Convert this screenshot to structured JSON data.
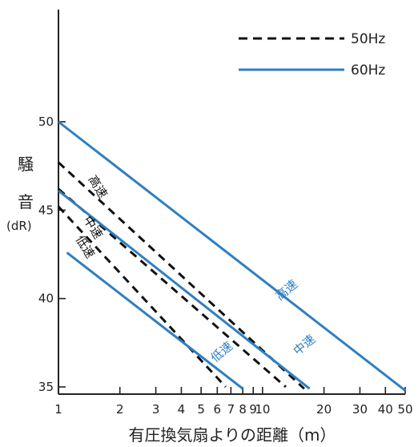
{
  "chart_data": {
    "type": "line",
    "xscale": "log",
    "xlim": [
      1,
      50
    ],
    "ylim": [
      35,
      50
    ],
    "xlabel": "有圧換気扇よりの距離（m）",
    "ylabel_chars": [
      "騒",
      "音"
    ],
    "ylabel_unit": "(dR)",
    "xticks": [
      1,
      2,
      3,
      4,
      5,
      6,
      7,
      8,
      9,
      10,
      20,
      30,
      40,
      50
    ],
    "xtick_labels": [
      "1",
      "2",
      "3",
      "4",
      "5",
      "6",
      "7",
      "8",
      "9",
      "10",
      "20",
      "30",
      "40",
      "50"
    ],
    "yticks": [
      35,
      40,
      45,
      50
    ],
    "ytick_labels": [
      "35",
      "40",
      "45",
      "50"
    ],
    "legend": [
      {
        "label": "50Hz",
        "color": "#111111",
        "style": "dashed"
      },
      {
        "label": "60Hz",
        "color": "#2f7fc1",
        "style": "solid"
      }
    ],
    "series": [
      {
        "freq": "50Hz",
        "speed": "高速",
        "color": "#111111",
        "style": "dashed",
        "points": [
          [
            1,
            47.7
          ],
          [
            16,
            34.9
          ]
        ],
        "label": "高速",
        "label_at": [
          1.5,
          46.2
        ],
        "label_angle": 58,
        "label_color": "#111111"
      },
      {
        "freq": "50Hz",
        "speed": "中速",
        "color": "#111111",
        "style": "dashed",
        "points": [
          [
            1,
            46.2
          ],
          [
            13,
            35.0
          ]
        ],
        "label": "中速",
        "label_at": [
          1.42,
          43.9
        ],
        "label_angle": 58,
        "label_color": "#111111"
      },
      {
        "freq": "50Hz",
        "speed": "低速",
        "color": "#111111",
        "style": "dashed",
        "points": [
          [
            1,
            45.2
          ],
          [
            6.6,
            35.0
          ]
        ],
        "label": "低速",
        "label_at": [
          1.3,
          42.8
        ],
        "label_angle": 58,
        "label_color": "#111111"
      },
      {
        "freq": "60Hz",
        "speed": "高速",
        "color": "#2f7fc1",
        "style": "solid",
        "points": [
          [
            1,
            50.0
          ],
          [
            50,
            34.8
          ]
        ],
        "label": "高速",
        "label_at": [
          13.5,
          40.3
        ],
        "label_angle": -40,
        "label_color": "#2f7fc1"
      },
      {
        "freq": "60Hz",
        "speed": "中速",
        "color": "#2f7fc1",
        "style": "solid",
        "points": [
          [
            1,
            46.1
          ],
          [
            17,
            34.9
          ]
        ],
        "label": "中速",
        "label_at": [
          16.5,
          37.2
        ],
        "label_angle": -40,
        "label_color": "#2f7fc1"
      },
      {
        "freq": "60Hz",
        "speed": "低速",
        "color": "#2f7fc1",
        "style": "solid",
        "points": [
          [
            1.1,
            42.6
          ],
          [
            8,
            34.9
          ]
        ],
        "label": "低速",
        "label_at": [
          6.5,
          36.8
        ],
        "label_angle": -40,
        "label_color": "#2f7fc1"
      }
    ]
  }
}
